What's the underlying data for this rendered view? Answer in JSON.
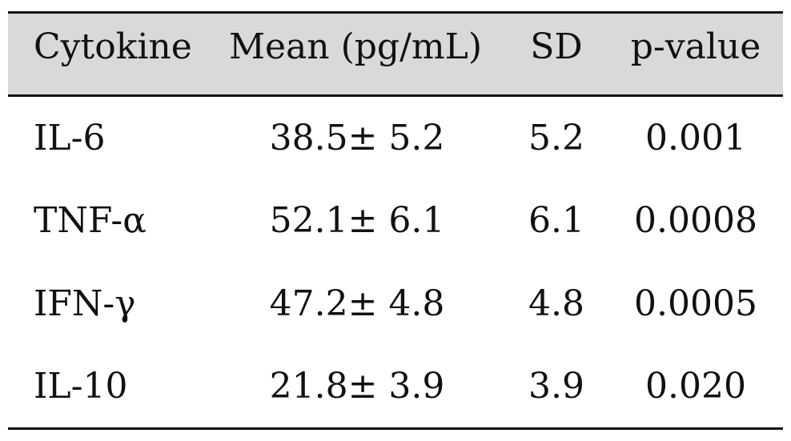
{
  "table": {
    "headers": [
      "Cytokine",
      "Mean (pg/mL)",
      "SD",
      "p-value"
    ],
    "rows": [
      [
        "IL-6",
        "38.5± 5.2",
        "5.2",
        "0.001"
      ],
      [
        "TNF-α",
        "52.1± 6.1",
        "6.1",
        "0.0008"
      ],
      [
        "IFN-γ",
        "47.2± 4.8",
        "4.8",
        "0.0005"
      ],
      [
        "IL-10",
        "21.8± 3.9",
        "3.9",
        "0.020"
      ]
    ]
  }
}
